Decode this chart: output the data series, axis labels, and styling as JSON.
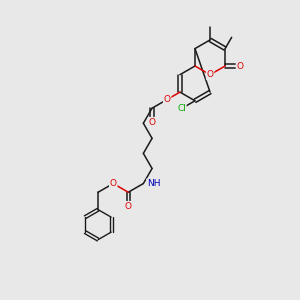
{
  "bg_color": "#e8e8e8",
  "bond_color": "#1a1a1a",
  "atom_colors": {
    "O": "#dd0000",
    "N": "#0000bb",
    "Cl": "#00aa00",
    "C": "#1a1a1a"
  },
  "figsize": [
    3.0,
    3.0
  ],
  "dpi": 100,
  "bl": 0.58,
  "lw": 1.1
}
